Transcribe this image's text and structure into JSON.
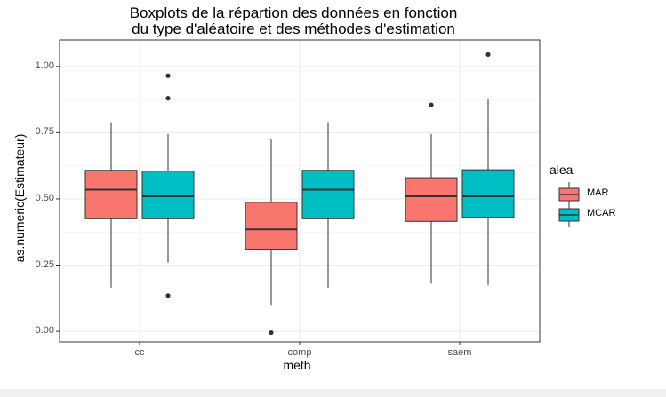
{
  "chart_data": {
    "type": "box",
    "title": "Boxplots de la répartion des données en fonction\ndu type d'aléatoire et des méthodes d'estimation",
    "title_lines": [
      "Boxplots de la répartion des données en fonction",
      "du type d'aléatoire et des méthodes d'estimation"
    ],
    "xlabel": "meth",
    "ylabel": "as.numeric(Estimateur)",
    "categories": [
      "cc",
      "comp",
      "saem"
    ],
    "ylim": [
      -0.04,
      1.1
    ],
    "yticks": [
      0.0,
      0.25,
      0.5,
      0.75,
      1.0
    ],
    "ytick_labels": [
      "0.00",
      "0.25",
      "0.50",
      "0.75",
      "1.00"
    ],
    "grid": true,
    "legend": {
      "title": "alea",
      "position": "right"
    },
    "series": [
      {
        "name": "MAR",
        "color": "#F8766D",
        "boxes": [
          {
            "category": "cc",
            "min": 0.165,
            "q1": 0.425,
            "median": 0.535,
            "q3": 0.608,
            "max": 0.79,
            "outliers": []
          },
          {
            "category": "comp",
            "min": 0.1,
            "q1": 0.31,
            "median": 0.385,
            "q3": 0.487,
            "max": 0.725,
            "outliers": [
              -0.005
            ]
          },
          {
            "category": "saem",
            "min": 0.18,
            "q1": 0.415,
            "median": 0.51,
            "q3": 0.58,
            "max": 0.745,
            "outliers": [
              0.855
            ]
          }
        ]
      },
      {
        "name": "MCAR",
        "color": "#00BFC4",
        "boxes": [
          {
            "category": "cc",
            "min": 0.26,
            "q1": 0.425,
            "median": 0.51,
            "q3": 0.605,
            "max": 0.745,
            "outliers": [
              0.135,
              0.88,
              0.965
            ]
          },
          {
            "category": "comp",
            "min": 0.165,
            "q1": 0.425,
            "median": 0.535,
            "q3": 0.608,
            "max": 0.79,
            "outliers": []
          },
          {
            "category": "saem",
            "min": 0.175,
            "q1": 0.43,
            "median": 0.51,
            "q3": 0.61,
            "max": 0.875,
            "outliers": [
              1.045
            ]
          }
        ]
      }
    ]
  }
}
